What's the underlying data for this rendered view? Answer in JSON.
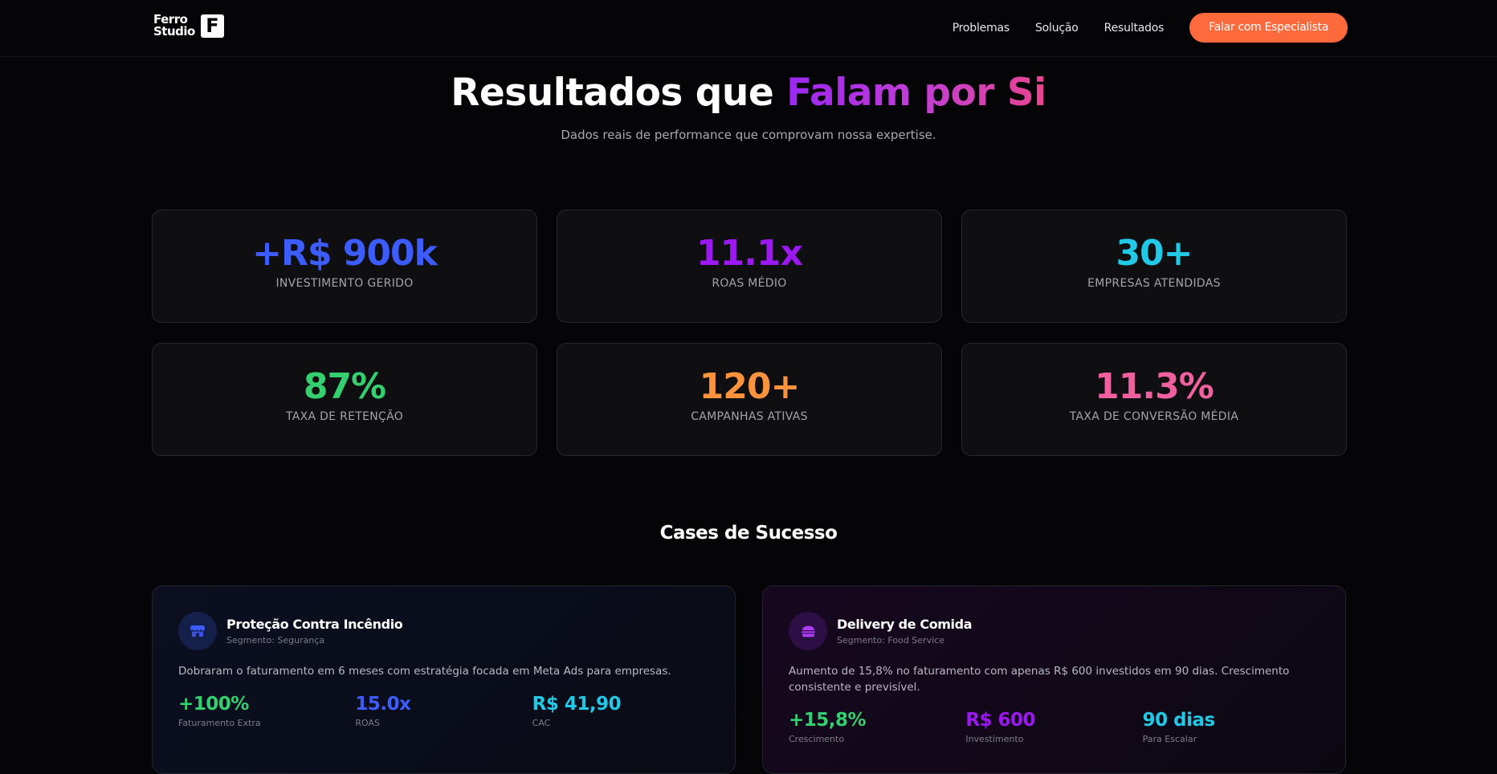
{
  "nav": {
    "logo_text": "Ferro Studio",
    "logo_mark": "F",
    "links": [
      "Problemas",
      "Solução",
      "Resultados"
    ],
    "cta": "Falar com Especialista"
  },
  "hero": {
    "title_plain": "Resultados que ",
    "title_highlight": "Falam por Si",
    "subtitle": "Dados reais de performance que comprovam nossa expertise."
  },
  "stats": [
    {
      "value": "+R$ 900k",
      "label": "INVESTIMENTO GERIDO",
      "color": "#3d5cff"
    },
    {
      "value": "11.1x",
      "label": "ROAS MÉDIO",
      "color": "#9b18f0"
    },
    {
      "value": "30+",
      "label": "EMPRESAS ATENDIDAS",
      "color": "#22c9e6"
    },
    {
      "value": "87%",
      "label": "TAXA DE RETENÇÃO",
      "color": "#34d06f"
    },
    {
      "value": "120+",
      "label": "CAMPANHAS ATIVAS",
      "color": "#fb923c"
    },
    {
      "value": "11.3%",
      "label": "TAXA DE CONVERSÃO MÉDIA",
      "color": "#f0609e"
    }
  ],
  "cases": {
    "title": "Cases de Sucesso",
    "items": [
      {
        "icon": "store-icon",
        "name": "Proteção Contra Incêndio",
        "segment": "Segmento: Segurança",
        "description": "Dobraram o faturamento em 6 meses com estratégia focada em Meta Ads para empresas.",
        "metrics": [
          {
            "value": "+100%",
            "label": "Faturamento Extra",
            "color": "#34d06f"
          },
          {
            "value": "15.0x",
            "label": "ROAS",
            "color": "#3d5cff"
          },
          {
            "value": "R$ 41,90",
            "label": "CAC",
            "color": "#22c9e6"
          }
        ]
      },
      {
        "icon": "burger-icon",
        "name": "Delivery de Comida",
        "segment": "Segmento: Food Service",
        "description": "Aumento de 15,8% no faturamento com apenas R$ 600 investidos em 90 dias. Crescimento consistente e previsível.",
        "metrics": [
          {
            "value": "+15,8%",
            "label": "Crescimento",
            "color": "#34d06f"
          },
          {
            "value": "R$ 600",
            "label": "Investimento",
            "color": "#9b18f0"
          },
          {
            "value": "90 dias",
            "label": "Para Escalar",
            "color": "#22c9e6"
          }
        ]
      }
    ]
  }
}
